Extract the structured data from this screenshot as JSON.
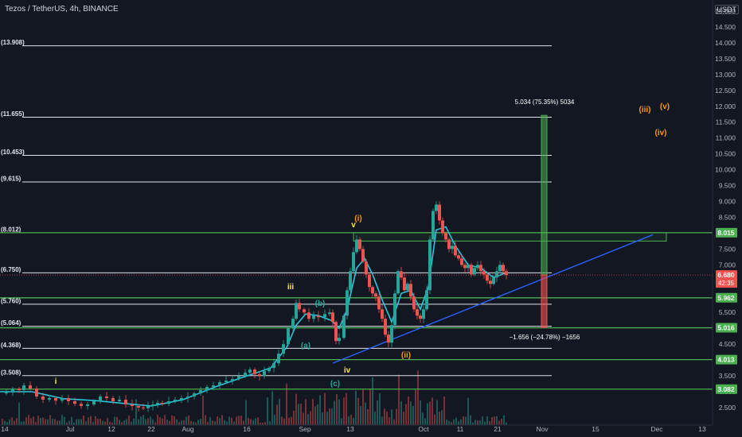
{
  "header": {
    "symbol": "Tezos / TetherUS, 4h, BINANCE",
    "currency": "USDT"
  },
  "chart_data": {
    "type": "line",
    "symbol": "Tezos / TetherUS, 4h, BINANCE",
    "ylim": [
      2.5,
      15.0
    ],
    "price_ticks": [
      "15.000",
      "14.500",
      "14.000",
      "13.500",
      "13.000",
      "12.500",
      "12.000",
      "11.500",
      "11.000",
      "10.500",
      "10.000",
      "9.500",
      "9.000",
      "8.500",
      "8.000",
      "7.500",
      "7.000",
      "6.500",
      "6.000",
      "5.500",
      "5.000",
      "4.500",
      "4.000",
      "3.500",
      "3.000",
      "2.500"
    ],
    "time_ticks": [
      "14",
      "Jul",
      "12",
      "22",
      "Aug",
      "16",
      "Sep",
      "13",
      "Oct",
      "11",
      "21",
      "Nov",
      "15",
      "Dec",
      "13"
    ],
    "current_price": {
      "value": "6.680",
      "countdown": "42:35"
    },
    "fib_levels": [
      {
        "label": "(13.908)",
        "value": 13.908
      },
      {
        "label": "(11.655)",
        "value": 11.655
      },
      {
        "label": "(10.453)",
        "value": 10.453
      },
      {
        "label": "(9.615)",
        "value": 9.615
      },
      {
        "label": "(8.012)",
        "value": 8.012
      },
      {
        "label": "(6.750)",
        "value": 6.75
      },
      {
        "label": "(5.760)",
        "value": 5.76
      },
      {
        "label": "(5.064)",
        "value": 5.064
      },
      {
        "label": "(4.368)",
        "value": 4.368
      },
      {
        "label": "(3.508)",
        "value": 3.508
      }
    ],
    "horizontal_levels": [
      {
        "label": "8.015",
        "value": 8.015
      },
      {
        "label": "5.962",
        "value": 5.962
      },
      {
        "label": "5.016",
        "value": 5.016
      },
      {
        "label": "4.013",
        "value": 4.013
      },
      {
        "label": "3.082",
        "value": 3.082
      }
    ],
    "measure_up": {
      "label": "5.034 (75.35%) 5034",
      "from": 6.68,
      "to": 11.714
    },
    "measure_down": {
      "label": "−1.656 (−24.78%) −1656",
      "from": 6.68,
      "to": 5.024
    },
    "wave_labels": [
      {
        "text": "i",
        "color": "#ffeb3b"
      },
      {
        "text": "iii",
        "color": "#ffeb3b"
      },
      {
        "text": "(b)",
        "color": "#26a69a"
      },
      {
        "text": "(a)",
        "color": "#26a69a"
      },
      {
        "text": "(c)",
        "color": "#26a69a"
      },
      {
        "text": "iv",
        "color": "#ffeb3b"
      },
      {
        "text": "v",
        "color": "#ffeb3b"
      },
      {
        "text": "(i)",
        "color": "#ff9800"
      },
      {
        "text": "(ii)",
        "color": "#ff9800"
      },
      {
        "text": "(iii)",
        "color": "#ff9800"
      },
      {
        "text": "(iv)",
        "color": "#ff9800"
      },
      {
        "text": "(v)",
        "color": "#ff9800"
      }
    ],
    "price_series": [
      [
        0,
        2.95
      ],
      [
        8,
        3.0
      ],
      [
        16,
        3.1
      ],
      [
        24,
        3.05
      ],
      [
        30,
        3.2
      ],
      [
        38,
        3.1
      ],
      [
        46,
        2.85
      ],
      [
        54,
        2.75
      ],
      [
        62,
        2.8
      ],
      [
        70,
        2.72
      ],
      [
        78,
        2.8
      ],
      [
        86,
        2.7
      ],
      [
        94,
        2.62
      ],
      [
        102,
        2.55
      ],
      [
        110,
        2.6
      ],
      [
        118,
        2.7
      ],
      [
        126,
        2.85
      ],
      [
        134,
        2.8
      ],
      [
        142,
        2.7
      ],
      [
        150,
        2.75
      ],
      [
        158,
        2.6
      ],
      [
        166,
        2.55
      ],
      [
        174,
        2.5
      ],
      [
        180,
        2.48
      ],
      [
        186,
        2.55
      ],
      [
        192,
        2.6
      ],
      [
        198,
        2.65
      ],
      [
        204,
        2.62
      ],
      [
        212,
        2.7
      ],
      [
        220,
        2.75
      ],
      [
        228,
        2.8
      ],
      [
        236,
        2.85
      ],
      [
        244,
        2.95
      ],
      [
        252,
        3.05
      ],
      [
        260,
        3.15
      ],
      [
        268,
        3.2
      ],
      [
        276,
        3.3
      ],
      [
        284,
        3.35
      ],
      [
        292,
        3.4
      ],
      [
        300,
        3.5
      ],
      [
        308,
        3.6
      ],
      [
        314,
        3.7
      ],
      [
        320,
        3.55
      ],
      [
        326,
        3.5
      ],
      [
        332,
        3.65
      ],
      [
        338,
        3.75
      ],
      [
        344,
        3.9
      ],
      [
        350,
        4.2
      ],
      [
        356,
        4.5
      ],
      [
        362,
        5.0
      ],
      [
        368,
        5.3
      ],
      [
        372,
        5.8
      ],
      [
        376,
        5.6
      ],
      [
        382,
        5.5
      ],
      [
        388,
        5.3
      ],
      [
        394,
        5.4
      ],
      [
        400,
        5.35
      ],
      [
        408,
        5.45
      ],
      [
        414,
        5.5
      ],
      [
        418,
        5.2
      ],
      [
        422,
        4.6
      ],
      [
        426,
        4.7
      ],
      [
        432,
        5.4
      ],
      [
        436,
        6.2
      ],
      [
        440,
        6.8
      ],
      [
        444,
        7.4
      ],
      [
        448,
        7.8
      ],
      [
        452,
        7.5
      ],
      [
        456,
        7.1
      ],
      [
        460,
        6.7
      ],
      [
        464,
        6.3
      ],
      [
        468,
        6.1
      ],
      [
        472,
        6.0
      ],
      [
        476,
        5.6
      ],
      [
        480,
        5.3
      ],
      [
        484,
        4.8
      ],
      [
        488,
        4.55
      ],
      [
        492,
        5.1
      ],
      [
        496,
        6.1
      ],
      [
        500,
        6.8
      ],
      [
        504,
        6.6
      ],
      [
        508,
        6.2
      ],
      [
        512,
        6.4
      ],
      [
        516,
        6.0
      ],
      [
        520,
        5.6
      ],
      [
        524,
        5.4
      ],
      [
        528,
        5.3
      ],
      [
        532,
        5.6
      ],
      [
        536,
        6.2
      ],
      [
        540,
        7.8
      ],
      [
        544,
        8.7
      ],
      [
        548,
        8.9
      ],
      [
        552,
        8.4
      ],
      [
        556,
        8.0
      ],
      [
        560,
        7.8
      ],
      [
        564,
        7.5
      ],
      [
        568,
        7.6
      ],
      [
        572,
        7.3
      ],
      [
        576,
        7.2
      ],
      [
        580,
        7.0
      ],
      [
        584,
        6.9
      ],
      [
        588,
        7.0
      ],
      [
        592,
        6.7
      ],
      [
        596,
        6.9
      ],
      [
        600,
        7.0
      ],
      [
        604,
        6.8
      ],
      [
        608,
        6.7
      ],
      [
        612,
        6.5
      ],
      [
        616,
        6.4
      ],
      [
        620,
        6.6
      ],
      [
        624,
        6.8
      ],
      [
        628,
        7.0
      ],
      [
        632,
        6.8
      ],
      [
        636,
        6.68
      ]
    ],
    "ma_series": [
      [
        0,
        3.0
      ],
      [
        40,
        3.0
      ],
      [
        80,
        2.78
      ],
      [
        120,
        2.72
      ],
      [
        160,
        2.62
      ],
      [
        190,
        2.55
      ],
      [
        230,
        2.75
      ],
      [
        270,
        3.15
      ],
      [
        310,
        3.5
      ],
      [
        340,
        3.75
      ],
      [
        360,
        4.4
      ],
      [
        372,
        5.1
      ],
      [
        384,
        5.45
      ],
      [
        400,
        5.4
      ],
      [
        416,
        5.25
      ],
      [
        426,
        5.0
      ],
      [
        436,
        5.6
      ],
      [
        448,
        6.9
      ],
      [
        458,
        7.2
      ],
      [
        468,
        6.7
      ],
      [
        480,
        5.9
      ],
      [
        492,
        5.2
      ],
      [
        504,
        6.1
      ],
      [
        516,
        6.2
      ],
      [
        528,
        5.6
      ],
      [
        538,
        6.3
      ],
      [
        548,
        8.1
      ],
      [
        560,
        8.2
      ],
      [
        572,
        7.6
      ],
      [
        588,
        7.0
      ],
      [
        604,
        6.9
      ],
      [
        620,
        6.6
      ],
      [
        636,
        6.75
      ]
    ],
    "trendline": {
      "from": [
        418,
        3.9
      ],
      "to": [
        820,
        7.95
      ]
    }
  }
}
